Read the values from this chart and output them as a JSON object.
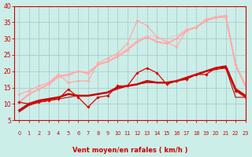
{
  "background_color": "#cceee8",
  "grid_color": "#aacccc",
  "xlabel": "Vent moyen/en rafales ( km/h )",
  "x_values": [
    0,
    1,
    2,
    3,
    4,
    5,
    6,
    7,
    8,
    9,
    10,
    11,
    12,
    13,
    14,
    15,
    16,
    17,
    18,
    19,
    20,
    21,
    22,
    23
  ],
  "series": [
    {
      "y": [
        10.5,
        10.0,
        10.5,
        11.0,
        11.5,
        14.5,
        12.0,
        9.0,
        12.0,
        12.5,
        15.5,
        15.5,
        19.5,
        21.0,
        19.5,
        16.0,
        17.0,
        17.5,
        19.0,
        19.0,
        21.0,
        21.0,
        14.0,
        12.0
      ],
      "color": "#dd0000",
      "linewidth": 0.9,
      "marker": "D",
      "markersize": 1.8,
      "zorder": 5
    },
    {
      "y": [
        8.0,
        10.0,
        11.0,
        11.5,
        12.0,
        13.0,
        12.5,
        12.5,
        13.0,
        13.5,
        15.0,
        15.5,
        16.0,
        17.0,
        16.5,
        16.5,
        17.0,
        18.0,
        19.0,
        20.0,
        21.0,
        21.5,
        14.5,
        12.5
      ],
      "color": "#cc0000",
      "linewidth": 1.8,
      "marker": null,
      "markersize": 0,
      "zorder": 4
    },
    {
      "y": [
        7.5,
        9.5,
        10.5,
        11.0,
        11.5,
        12.0,
        12.5,
        12.5,
        13.0,
        13.5,
        14.5,
        15.5,
        16.0,
        16.5,
        16.5,
        16.5,
        17.0,
        18.0,
        19.0,
        20.0,
        20.5,
        21.0,
        12.0,
        12.0
      ],
      "color": "#990000",
      "linewidth": 0.7,
      "marker": null,
      "markersize": 0,
      "zorder": 3
    },
    {
      "y": [
        13.0,
        14.0,
        15.5,
        16.5,
        19.0,
        16.5,
        17.0,
        17.0,
        22.5,
        24.0,
        25.5,
        28.5,
        35.5,
        34.0,
        30.5,
        29.0,
        27.5,
        32.5,
        33.5,
        36.0,
        36.5,
        36.5,
        22.0,
        16.0
      ],
      "color": "#ffaaaa",
      "linewidth": 0.9,
      "marker": "D",
      "markersize": 1.8,
      "zorder": 2
    },
    {
      "y": [
        10.5,
        13.0,
        14.5,
        16.0,
        18.5,
        19.0,
        20.0,
        19.5,
        22.0,
        23.0,
        24.5,
        26.5,
        29.0,
        30.5,
        29.0,
        28.5,
        30.0,
        32.5,
        33.5,
        35.5,
        36.5,
        37.0,
        22.0,
        15.5
      ],
      "color": "#ffaaaa",
      "linewidth": 1.5,
      "marker": "D",
      "markersize": 1.8,
      "zorder": 2
    },
    {
      "y": [
        10.5,
        13.0,
        14.5,
        16.0,
        18.0,
        18.5,
        20.0,
        19.0,
        22.0,
        23.0,
        25.0,
        27.0,
        29.5,
        31.0,
        30.5,
        30.0,
        31.0,
        33.0,
        33.5,
        35.5,
        37.0,
        37.0,
        22.0,
        15.5
      ],
      "color": "#ffbbbb",
      "linewidth": 0.7,
      "marker": null,
      "markersize": 0,
      "zorder": 1
    }
  ],
  "ylim": [
    5,
    40
  ],
  "xlim": [
    -0.5,
    23
  ],
  "yticks": [
    5,
    10,
    15,
    20,
    25,
    30,
    35,
    40
  ],
  "xticks": [
    0,
    1,
    2,
    3,
    4,
    5,
    6,
    7,
    8,
    9,
    10,
    11,
    12,
    13,
    14,
    15,
    16,
    17,
    18,
    19,
    20,
    21,
    22,
    23
  ],
  "tick_color": "#cc0000",
  "axis_label_color": "#cc0000",
  "tick_label_color": "#cc0000",
  "xlabel_fontsize": 6.0,
  "ylabel_fontsize": 5.5,
  "xtick_fontsize": 4.8,
  "ytick_fontsize": 5.5
}
